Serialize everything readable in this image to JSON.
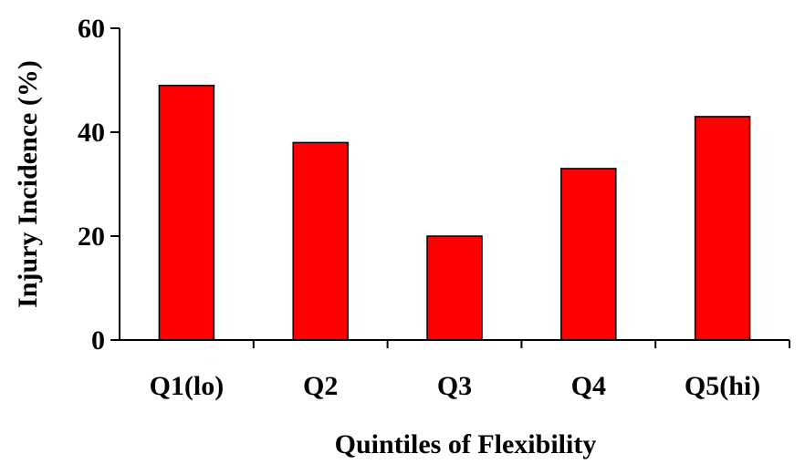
{
  "chart_data": {
    "type": "bar",
    "title": "",
    "xlabel": "Quintiles of Flexibility",
    "ylabel": "Injury Incidence (%)",
    "categories": [
      "Q1(lo)",
      "Q2",
      "Q3",
      "Q4",
      "Q5(hi)"
    ],
    "values": [
      49,
      38,
      20,
      33,
      43
    ],
    "ylim": [
      0,
      60
    ],
    "yticks": [
      "0",
      "20",
      "40",
      "60"
    ],
    "grid": false,
    "legend": "none",
    "bar_color": "#ff0000"
  }
}
